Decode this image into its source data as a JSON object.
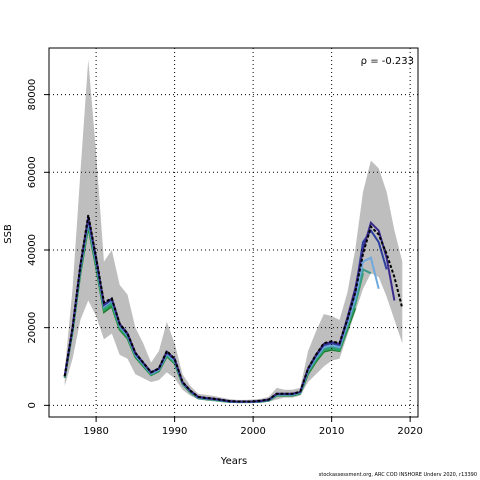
{
  "chart_data": {
    "type": "line",
    "title": "",
    "xlabel": "Years",
    "ylabel": "SSB",
    "xlim": [
      1974,
      2021
    ],
    "ylim": [
      -3000,
      92000
    ],
    "x_ticks": [
      1980,
      1990,
      2000,
      2010,
      2020
    ],
    "y_ticks": [
      0,
      20000,
      40000,
      60000,
      80000
    ],
    "grid": "dotted",
    "annotation": "ρ = -0.233",
    "colors": {
      "band": "#bebebe",
      "base": "#000000",
      "retros": [
        "#3a2a8c",
        "#2a3fa0",
        "#6fa8dc",
        "#3a9a8c",
        "#26a65b",
        "#1e7a30",
        "#9ab84a",
        "#c8b43c"
      ]
    },
    "band": {
      "x": [
        1976,
        1977,
        1978,
        1979,
        1980,
        1981,
        1982,
        1983,
        1984,
        1985,
        1986,
        1987,
        1988,
        1989,
        1990,
        1991,
        1992,
        1993,
        1994,
        1995,
        1996,
        1997,
        1998,
        1999,
        2000,
        2001,
        2002,
        2003,
        2004,
        2005,
        2006,
        2007,
        2008,
        2009,
        2010,
        2011,
        2012,
        2013,
        2014,
        2015,
        2016,
        2017,
        2018,
        2019
      ],
      "lower": [
        5000,
        12000,
        22000,
        27000,
        23000,
        17000,
        18500,
        13000,
        12000,
        8000,
        7000,
        6000,
        6500,
        8500,
        7000,
        4000,
        2500,
        1500,
        1200,
        1000,
        900,
        700,
        600,
        600,
        600,
        700,
        900,
        1500,
        2000,
        2000,
        2500,
        6000,
        8000,
        10000,
        11500,
        12000,
        18000,
        24000,
        30000,
        34000,
        33000,
        28000,
        22000,
        16000
      ],
      "upper": [
        9000,
        30000,
        60000,
        89000,
        65000,
        37000,
        40000,
        31000,
        28500,
        20000,
        16000,
        11000,
        14000,
        21500,
        16000,
        8000,
        5000,
        3000,
        2700,
        2400,
        2000,
        1600,
        1400,
        1400,
        1500,
        1700,
        2200,
        4500,
        4000,
        4000,
        4500,
        14000,
        19000,
        23500,
        23000,
        22000,
        29000,
        40000,
        55000,
        63000,
        61000,
        55000,
        45000,
        37000
      ]
    },
    "series": [
      {
        "x": [
          1976,
          1977,
          1978,
          1979,
          1980,
          1981,
          1982,
          1983,
          1984,
          1985,
          1986,
          1987,
          1988,
          1989,
          1990,
          1991,
          1992,
          1993,
          1994,
          1995,
          1996,
          1997,
          1998,
          1999,
          2000,
          2001,
          2002,
          2003,
          2004,
          2005,
          2006,
          2007,
          2008,
          2009,
          2010,
          2011,
          2012,
          2013,
          2014,
          2015,
          2016,
          2017,
          2018,
          2019
        ],
        "values": [
          7500,
          20000,
          36000,
          49000,
          38000,
          26500,
          27500,
          21000,
          18500,
          13500,
          11000,
          8500,
          9500,
          14000,
          12000,
          6000,
          3800,
          2200,
          1900,
          1700,
          1400,
          1100,
          1000,
          1000,
          1000,
          1200,
          1500,
          3000,
          3000,
          3000,
          3500,
          9500,
          13000,
          16000,
          16500,
          16000,
          22000,
          29000,
          39000,
          46000,
          44000,
          39000,
          33000,
          25000
        ]
      },
      {
        "x": [
          1976,
          1977,
          1978,
          1979,
          1980,
          1981,
          1982,
          1983,
          1984,
          1985,
          1986,
          1987,
          1988,
          1989,
          1990,
          1991,
          1992,
          1993,
          1994,
          1995,
          1996,
          1997,
          1998,
          1999,
          2000,
          2001,
          2002,
          2003,
          2004,
          2005,
          2006,
          2007,
          2008,
          2009,
          2010,
          2011,
          2012,
          2013,
          2014,
          2015,
          2016,
          2017,
          2018
        ],
        "values": [
          7500,
          20000,
          36000,
          48500,
          38000,
          26000,
          27500,
          21000,
          18500,
          13500,
          11000,
          8500,
          9500,
          13800,
          12000,
          6000,
          3800,
          2200,
          1900,
          1700,
          1400,
          1100,
          1000,
          1000,
          1000,
          1200,
          1500,
          3000,
          3000,
          3000,
          3500,
          9500,
          13000,
          15800,
          16300,
          15800,
          22500,
          30000,
          40000,
          47000,
          45000,
          38000,
          27000
        ]
      },
      {
        "x": [
          1976,
          1977,
          1978,
          1979,
          1980,
          1981,
          1982,
          1983,
          1984,
          1985,
          1986,
          1987,
          1988,
          1989,
          1990,
          1991,
          1992,
          1993,
          1994,
          1995,
          1996,
          1997,
          1998,
          1999,
          2000,
          2001,
          2002,
          2003,
          2004,
          2005,
          2006,
          2007,
          2008,
          2009,
          2010,
          2011,
          2012,
          2013,
          2014,
          2015,
          2016,
          2017
        ],
        "values": [
          7500,
          20000,
          36000,
          48000,
          37500,
          25800,
          27300,
          20800,
          18300,
          13300,
          10900,
          8400,
          9400,
          13600,
          11800,
          5900,
          3700,
          2100,
          1800,
          1600,
          1300,
          1000,
          950,
          950,
          950,
          1100,
          1400,
          2900,
          2900,
          2900,
          3400,
          9300,
          12700,
          15500,
          16000,
          15500,
          22000,
          29000,
          42000,
          45000,
          42000,
          35000
        ]
      },
      {
        "x": [
          1976,
          1977,
          1978,
          1979,
          1980,
          1981,
          1982,
          1983,
          1984,
          1985,
          1986,
          1987,
          1988,
          1989,
          1990,
          1991,
          1992,
          1993,
          1994,
          1995,
          1996,
          1997,
          1998,
          1999,
          2000,
          2001,
          2002,
          2003,
          2004,
          2005,
          2006,
          2007,
          2008,
          2009,
          2010,
          2011,
          2012,
          2013,
          2014,
          2015,
          2016
        ],
        "values": [
          7400,
          19800,
          35500,
          47500,
          37000,
          25500,
          27000,
          20500,
          18000,
          13000,
          10700,
          8200,
          9200,
          13300,
          11500,
          5800,
          3600,
          2000,
          1700,
          1550,
          1250,
          1000,
          900,
          900,
          900,
          1050,
          1350,
          2800,
          2800,
          2800,
          3300,
          9000,
          12300,
          15000,
          15500,
          15000,
          21000,
          27500,
          37000,
          38000,
          30000
        ]
      },
      {
        "x": [
          1976,
          1977,
          1978,
          1979,
          1980,
          1981,
          1982,
          1983,
          1984,
          1985,
          1986,
          1987,
          1988,
          1989,
          1990,
          1991,
          1992,
          1993,
          1994,
          1995,
          1996,
          1997,
          1998,
          1999,
          2000,
          2001,
          2002,
          2003,
          2004,
          2005,
          2006,
          2007,
          2008,
          2009,
          2010,
          2011,
          2012,
          2013,
          2014,
          2015
        ],
        "values": [
          7300,
          19500,
          35000,
          47000,
          36500,
          25000,
          26500,
          20200,
          17800,
          12800,
          10500,
          8000,
          9000,
          13000,
          11200,
          5700,
          3500,
          1950,
          1650,
          1500,
          1200,
          950,
          880,
          880,
          880,
          1000,
          1300,
          2700,
          2700,
          2700,
          3200,
          8700,
          12000,
          14600,
          15000,
          14600,
          20500,
          26500,
          35000,
          34000
        ]
      },
      {
        "x": [
          1976,
          1977,
          1978,
          1979,
          1980,
          1981,
          1982,
          1983,
          1984,
          1985,
          1986,
          1987,
          1988,
          1989,
          1990,
          1991,
          1992,
          1993,
          1994,
          1995,
          1996,
          1997,
          1998,
          1999,
          2000,
          2001,
          2002,
          2003,
          2004,
          2005,
          2006,
          2007,
          2008,
          2009,
          2010,
          2011,
          2012,
          2013,
          2014
        ],
        "values": [
          7200,
          19200,
          34500,
          46500,
          36000,
          24500,
          26000,
          19800,
          17500,
          12600,
          10300,
          7900,
          8900,
          12800,
          11000,
          5600,
          3400,
          1900,
          1600,
          1450,
          1150,
          920,
          850,
          850,
          850,
          980,
          1250,
          2600,
          2600,
          2600,
          3100,
          8400,
          11600,
          14200,
          14600,
          14200,
          20000,
          26000,
          34000
        ]
      },
      {
        "x": [
          1976,
          1977,
          1978,
          1979,
          1980,
          1981,
          1982,
          1983,
          1984,
          1985,
          1986,
          1987,
          1988,
          1989,
          1990,
          1991,
          1992,
          1993,
          1994,
          1995,
          1996,
          1997,
          1998,
          1999,
          2000,
          2001,
          2002,
          2003,
          2004,
          2005,
          2006,
          2007,
          2008,
          2009,
          2010,
          2011,
          2012,
          2013
        ],
        "values": [
          7100,
          19000,
          34000,
          46000,
          35500,
          24000,
          25500,
          19500,
          17200,
          12400,
          10100,
          7800,
          8800,
          12600,
          10800,
          5500,
          3300,
          1850,
          1550,
          1400,
          1100,
          900,
          830,
          830,
          830,
          950,
          1200,
          2500,
          2500,
          2500,
          3000,
          8100,
          11200,
          13800,
          14300,
          14000,
          19500,
          25000
        ]
      }
    ]
  },
  "footer": "stockassessment.org, ARC COD INSHORE Underv 2020, r13390"
}
